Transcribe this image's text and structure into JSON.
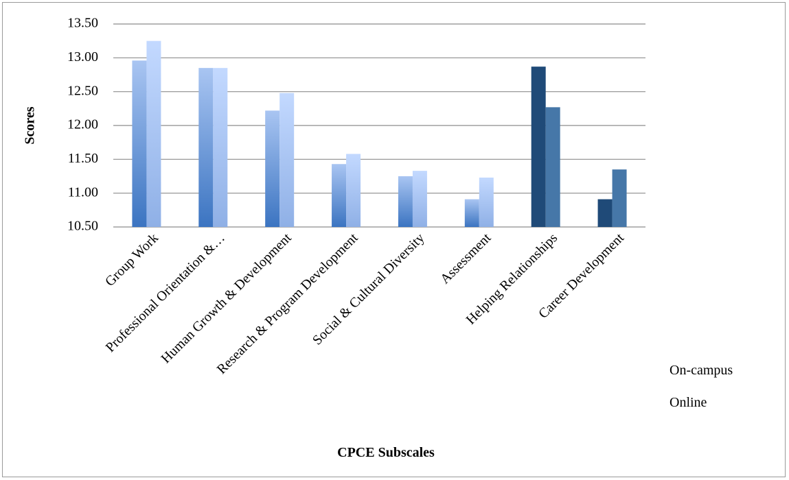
{
  "chart_data": {
    "type": "bar",
    "xlabel": "CPCE Subscales",
    "ylabel": "Scores",
    "ylim": [
      10.5,
      13.5
    ],
    "yticks": [
      "10.50",
      "11.00",
      "11.50",
      "12.00",
      "12.50",
      "13.00",
      "13.50"
    ],
    "categories": [
      "Group Work",
      "Professional Orientation &…",
      "Human Growth & Development",
      "Research & Program Development",
      "Social & Cultural Diversity",
      "Assessment",
      "Helping Relationships",
      "Career Development"
    ],
    "series": [
      {
        "name": "On-campus",
        "values": [
          12.96,
          12.85,
          12.22,
          11.43,
          11.25,
          10.91,
          12.87,
          10.91
        ]
      },
      {
        "name": "Online",
        "values": [
          13.25,
          12.85,
          12.48,
          11.58,
          11.33,
          11.23,
          12.27,
          11.35
        ]
      }
    ],
    "grid": true,
    "legend": "right",
    "colors": {
      "on_campus_gradient": [
        "#3B74C1",
        "#A9C5F2"
      ],
      "online_gradient": [
        "#8FB0E6",
        "#C3D9FF"
      ],
      "on_campus_dark": "#1F4A78",
      "online_dark": "#4677A8",
      "gridline": "#8C8C8C"
    }
  }
}
